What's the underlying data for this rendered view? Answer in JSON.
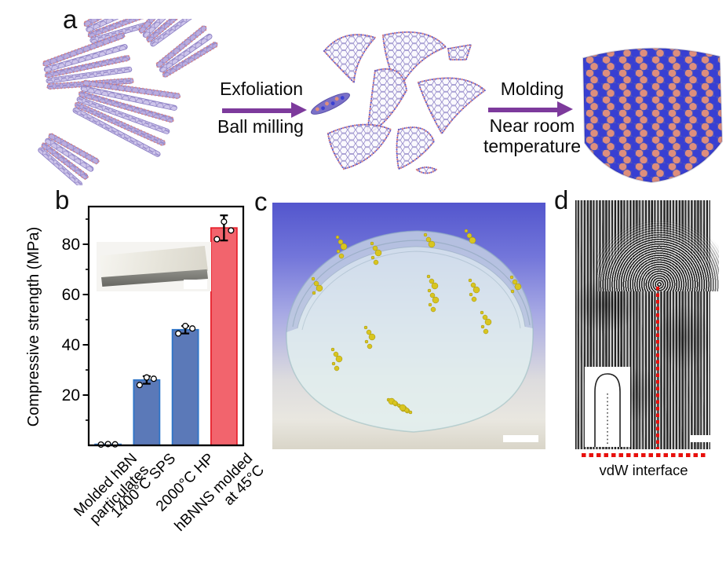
{
  "figure": {
    "panel_labels": {
      "a": "a",
      "b": "b",
      "c": "c",
      "d": "d"
    }
  },
  "process": {
    "step1_title": "Exfoliation",
    "step1_sub": "Ball milling",
    "step2_title": "Molding",
    "step2_sub": "Near room\ntemperature",
    "arrow_color": "#7d3a9c"
  },
  "chart_data": {
    "type": "bar",
    "title": "",
    "xlabel": "",
    "ylabel": "Compressive strength (MPa)",
    "ylim": [
      0,
      95
    ],
    "yticks": [
      20,
      40,
      60,
      80
    ],
    "minor_yticks": [
      10,
      30,
      50,
      70,
      90
    ],
    "categories": [
      "Molded hBN\nparticulates",
      "1400°C SPS",
      "2000°C HP",
      "hBNNS molded\nat 45°C"
    ],
    "values": [
      0.4,
      26,
      46,
      86.5
    ],
    "errors": [
      0,
      1.5,
      1.5,
      5
    ],
    "points": [
      [
        0.3,
        0.5,
        0.4
      ],
      [
        24,
        27,
        26.5
      ],
      [
        44.5,
        47.5,
        46.5
      ],
      [
        82,
        89,
        85.5
      ]
    ],
    "bar_fill": [
      "#5b79b8",
      "#5b79b8",
      "#5b79b8",
      "#f2646d"
    ],
    "bar_edge": [
      "#2e75c8",
      "#2e75c8",
      "#2e75c8",
      "#e8232e"
    ],
    "grid": false,
    "legend": null
  },
  "panel_c": {
    "description_colors": {
      "background_top": "#5356cd",
      "particles": "#d8c520"
    }
  },
  "panel_d": {
    "caption": "vdW interface",
    "marker_color": "#e8100c"
  }
}
